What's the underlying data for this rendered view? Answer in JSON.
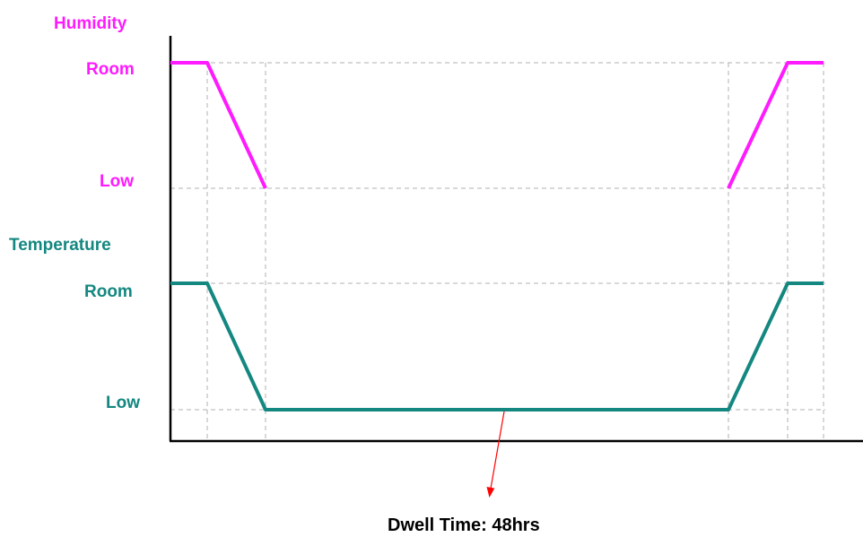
{
  "colors": {
    "humidity": "#ff1aff",
    "temperature": "#138780",
    "axis": "#000000",
    "guide": "#b0b0b0",
    "arrow": "#ff0000",
    "caption": "#000000"
  },
  "humidity": {
    "heading": "Humidity",
    "level_high": "Room",
    "level_low": "Low"
  },
  "temperature": {
    "heading": "Temperature",
    "level_high": "Room",
    "level_low": "Low"
  },
  "dwell": {
    "caption": "Dwell Time: 48hrs"
  }
}
